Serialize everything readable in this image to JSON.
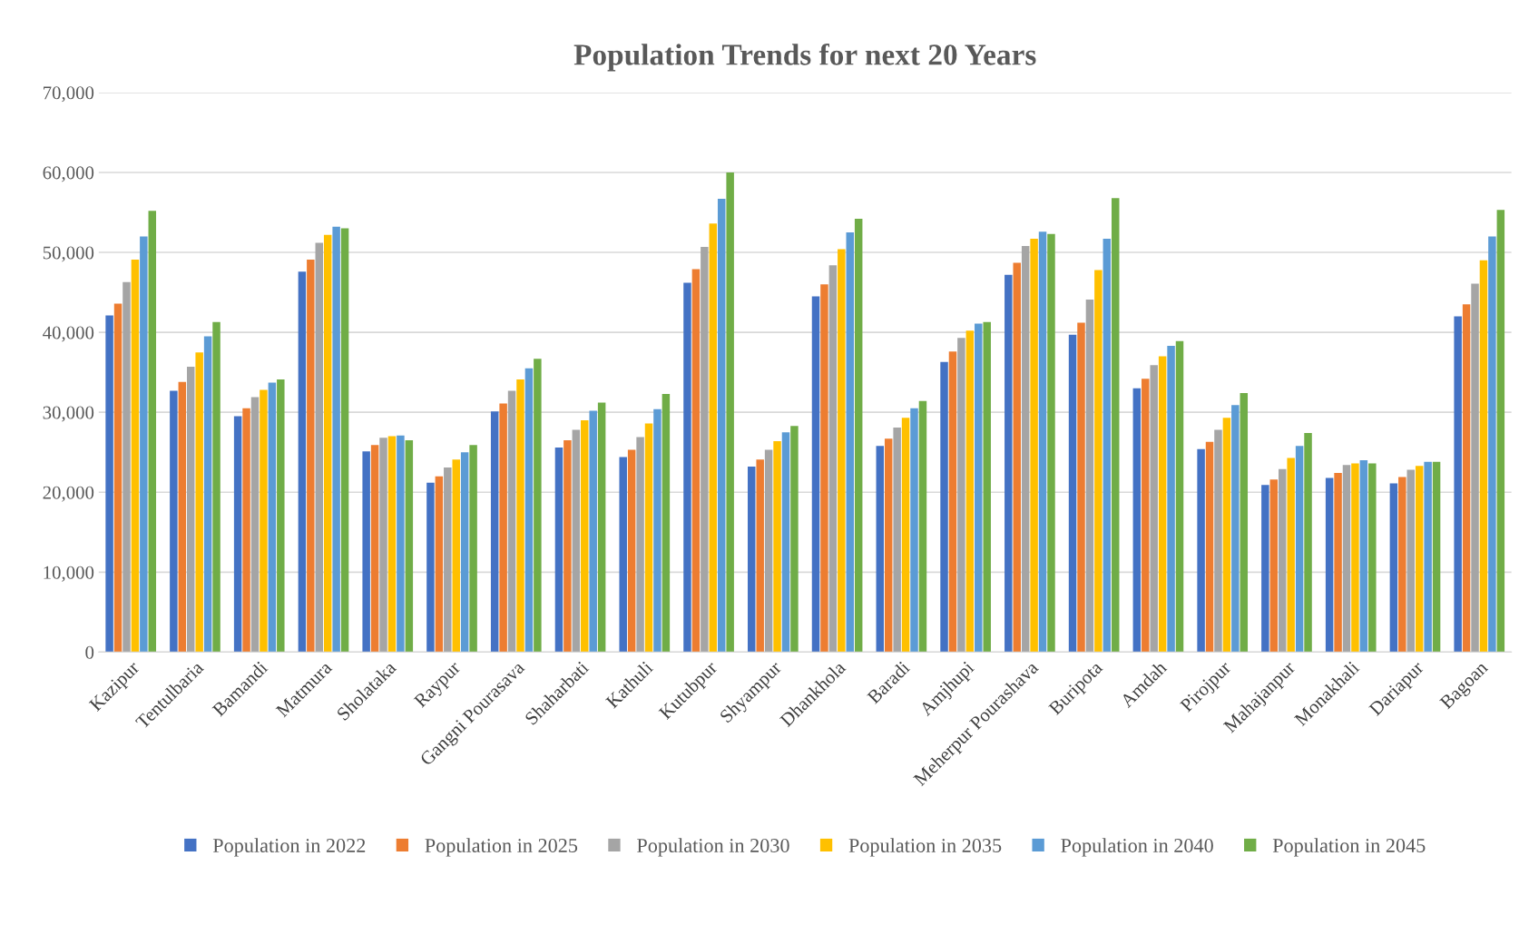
{
  "chart_data": {
    "type": "bar",
    "title": "Population Trends for next 20 Years",
    "categories": [
      "Kazipur",
      "Tentulbaria",
      "Bamandi",
      "Matmura",
      "Sholataka",
      "Raypur",
      "Gangni Pourasava",
      "Shaharbati",
      "Kathuli",
      "Kutubpur",
      "Shyampur",
      "Dhankhola",
      "Baradi",
      "Amjhupi",
      "Meherpur Pourashava",
      "Buripota",
      "Amdah",
      "Pirojpur",
      "Mahajanpur",
      "Monakhali",
      "Dariapur",
      "Bagoan"
    ],
    "series": [
      {
        "name": "Population in 2022",
        "color": "#4472c4",
        "values": [
          42100,
          32700,
          29500,
          47600,
          25100,
          21200,
          30100,
          25600,
          24400,
          46200,
          23200,
          44500,
          25800,
          36300,
          47200,
          39700,
          33000,
          25400,
          20900,
          21800,
          21100,
          42000
        ]
      },
      {
        "name": "Population in 2025",
        "color": "#ed7d31",
        "values": [
          43600,
          33800,
          30500,
          49100,
          25900,
          22000,
          31100,
          26500,
          25300,
          47900,
          24100,
          46000,
          26700,
          37600,
          48700,
          41200,
          34200,
          26300,
          21600,
          22400,
          21900,
          43500
        ]
      },
      {
        "name": "Population in 2030",
        "color": "#a5a5a5",
        "values": [
          46300,
          35700,
          31900,
          51200,
          26800,
          23100,
          32700,
          27800,
          26900,
          50700,
          25300,
          48400,
          28100,
          39300,
          50800,
          44100,
          35900,
          27800,
          22900,
          23400,
          22800,
          46100
        ]
      },
      {
        "name": "Population in 2035",
        "color": "#ffc000",
        "values": [
          49100,
          37500,
          32800,
          52200,
          27000,
          24100,
          34100,
          29000,
          28600,
          53600,
          26400,
          50400,
          29300,
          40200,
          51700,
          47800,
          37000,
          29300,
          24300,
          23600,
          23300,
          49000
        ]
      },
      {
        "name": "Population in 2040",
        "color": "#5b9bd5",
        "values": [
          52000,
          39500,
          33700,
          53200,
          27100,
          25000,
          35500,
          30200,
          30400,
          56700,
          27500,
          52500,
          30500,
          41100,
          52600,
          51700,
          38300,
          30900,
          25800,
          24000,
          23800,
          52000
        ]
      },
      {
        "name": "Population in 2045",
        "color": "#70ad47",
        "values": [
          55200,
          41300,
          34100,
          53000,
          26500,
          25900,
          36700,
          31200,
          32300,
          60000,
          28300,
          54200,
          31400,
          41300,
          52300,
          56800,
          38900,
          32400,
          27400,
          23600,
          23800,
          55300
        ]
      }
    ],
    "ylim": [
      0,
      70000
    ],
    "yticks": [
      {
        "value": 0,
        "label": "0"
      },
      {
        "value": 10000,
        "label": "10,000"
      },
      {
        "value": 20000,
        "label": "20,000"
      },
      {
        "value": 30000,
        "label": "30,000"
      },
      {
        "value": 40000,
        "label": "40,000"
      },
      {
        "value": 50000,
        "label": "50,000"
      },
      {
        "value": 60000,
        "label": "60,000"
      },
      {
        "value": 70000,
        "label": "70,000"
      }
    ],
    "grid": "y",
    "legend": "bottom"
  }
}
